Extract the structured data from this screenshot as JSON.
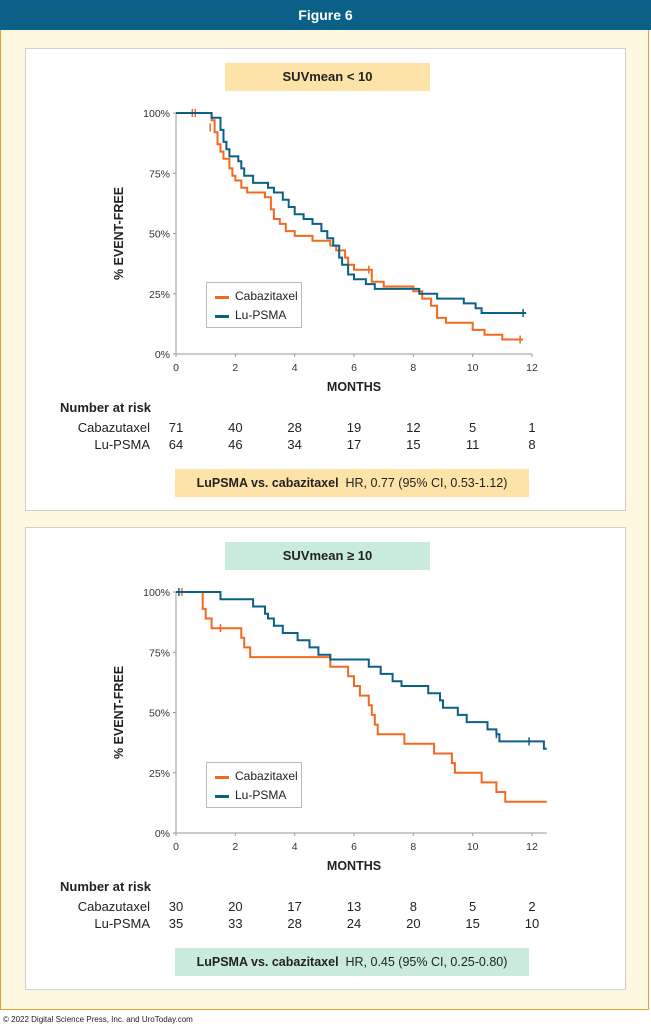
{
  "figure": {
    "title": "Figure 6"
  },
  "footer": {
    "text": "© 2022 Digital Science Press, Inc. and UroToday.com"
  },
  "colors": {
    "cabazitaxel": "#f26a21",
    "lu_psma": "#0b6087",
    "header": "#0b6087"
  },
  "chart_data": [
    {
      "type": "line",
      "title": "SUVmean < 10",
      "xlabel": "MONTHS",
      "ylabel": "% EVENT-FREE",
      "xlim": [
        0,
        12
      ],
      "ylim": [
        0,
        100
      ],
      "x_ticks": [
        "0",
        "2",
        "4",
        "6",
        "8",
        "10",
        "12"
      ],
      "y_ticks": [
        "0%",
        "25%",
        "50%",
        "75%",
        "100%"
      ],
      "legend": "inside-lower-left",
      "series": [
        {
          "name": "Cabazitaxel",
          "color": "#f26a21",
          "points": [
            [
              0,
              100
            ],
            [
              1.2,
              100
            ],
            [
              1.2,
              97
            ],
            [
              1.3,
              97
            ],
            [
              1.3,
              92
            ],
            [
              1.4,
              92
            ],
            [
              1.4,
              87
            ],
            [
              1.5,
              87
            ],
            [
              1.5,
              84
            ],
            [
              1.6,
              84
            ],
            [
              1.6,
              81
            ],
            [
              1.8,
              81
            ],
            [
              1.8,
              77
            ],
            [
              1.9,
              77
            ],
            [
              1.9,
              74
            ],
            [
              2.0,
              74
            ],
            [
              2.0,
              72
            ],
            [
              2.2,
              72
            ],
            [
              2.2,
              69
            ],
            [
              2.4,
              69
            ],
            [
              2.4,
              67
            ],
            [
              3.0,
              67
            ],
            [
              3.0,
              65
            ],
            [
              3.2,
              65
            ],
            [
              3.2,
              60
            ],
            [
              3.3,
              60
            ],
            [
              3.3,
              56
            ],
            [
              3.5,
              56
            ],
            [
              3.5,
              54
            ],
            [
              3.7,
              54
            ],
            [
              3.7,
              51
            ],
            [
              4.0,
              51
            ],
            [
              4.0,
              49
            ],
            [
              4.6,
              49
            ],
            [
              4.6,
              47
            ],
            [
              5.2,
              47
            ],
            [
              5.2,
              45
            ],
            [
              5.4,
              45
            ],
            [
              5.4,
              43
            ],
            [
              5.7,
              43
            ],
            [
              5.7,
              40
            ],
            [
              5.8,
              40
            ],
            [
              5.8,
              37
            ],
            [
              6.0,
              37
            ],
            [
              6.0,
              35
            ],
            [
              6.6,
              35
            ],
            [
              6.6,
              30
            ],
            [
              7.0,
              30
            ],
            [
              7.0,
              28
            ],
            [
              8.0,
              28
            ],
            [
              8.0,
              26
            ],
            [
              8.3,
              26
            ],
            [
              8.3,
              23
            ],
            [
              8.6,
              23
            ],
            [
              8.6,
              20
            ],
            [
              8.8,
              20
            ],
            [
              8.8,
              15
            ],
            [
              9.1,
              15
            ],
            [
              9.1,
              13
            ],
            [
              10.0,
              13
            ],
            [
              10.0,
              10
            ],
            [
              10.4,
              10
            ],
            [
              10.4,
              8
            ],
            [
              11.0,
              8
            ],
            [
              11.0,
              6
            ],
            [
              11.7,
              6
            ]
          ],
          "censored": [
            [
              0.55,
              100
            ],
            [
              0.65,
              100
            ],
            [
              1.15,
              94
            ],
            [
              6.5,
              35
            ],
            [
              11.6,
              6
            ]
          ]
        },
        {
          "name": "Lu-PSMA",
          "color": "#0b6087",
          "points": [
            [
              0,
              100
            ],
            [
              1.2,
              100
            ],
            [
              1.2,
              98
            ],
            [
              1.5,
              98
            ],
            [
              1.5,
              93
            ],
            [
              1.6,
              93
            ],
            [
              1.6,
              88
            ],
            [
              1.7,
              88
            ],
            [
              1.7,
              85
            ],
            [
              1.8,
              85
            ],
            [
              1.8,
              82
            ],
            [
              2.1,
              82
            ],
            [
              2.1,
              80
            ],
            [
              2.2,
              80
            ],
            [
              2.2,
              77
            ],
            [
              2.3,
              77
            ],
            [
              2.3,
              74
            ],
            [
              2.6,
              74
            ],
            [
              2.6,
              71
            ],
            [
              3.1,
              71
            ],
            [
              3.1,
              69
            ],
            [
              3.3,
              69
            ],
            [
              3.3,
              67
            ],
            [
              3.6,
              67
            ],
            [
              3.6,
              64
            ],
            [
              3.8,
              64
            ],
            [
              3.8,
              61
            ],
            [
              4.0,
              61
            ],
            [
              4.0,
              58
            ],
            [
              4.3,
              58
            ],
            [
              4.3,
              56
            ],
            [
              4.6,
              56
            ],
            [
              4.6,
              54
            ],
            [
              4.9,
              54
            ],
            [
              4.9,
              51
            ],
            [
              5.1,
              51
            ],
            [
              5.1,
              48
            ],
            [
              5.3,
              48
            ],
            [
              5.3,
              45
            ],
            [
              5.5,
              45
            ],
            [
              5.5,
              40
            ],
            [
              5.6,
              40
            ],
            [
              5.6,
              37
            ],
            [
              5.8,
              37
            ],
            [
              5.8,
              33
            ],
            [
              6.0,
              33
            ],
            [
              6.0,
              31
            ],
            [
              6.4,
              31
            ],
            [
              6.4,
              29
            ],
            [
              6.7,
              29
            ],
            [
              6.7,
              27
            ],
            [
              8.2,
              27
            ],
            [
              8.2,
              25
            ],
            [
              8.8,
              25
            ],
            [
              8.8,
              23
            ],
            [
              9.7,
              23
            ],
            [
              9.7,
              21
            ],
            [
              10.1,
              21
            ],
            [
              10.1,
              19
            ],
            [
              10.3,
              19
            ],
            [
              10.3,
              17
            ],
            [
              11.8,
              17
            ]
          ],
          "censored": [
            [
              11.7,
              17
            ]
          ]
        }
      ]
    },
    {
      "type": "line",
      "title": "SUVmean ≥ 10",
      "xlabel": "MONTHS",
      "ylabel": "% EVENT-FREE",
      "xlim": [
        0,
        12.5
      ],
      "ylim": [
        0,
        100
      ],
      "x_ticks": [
        "0",
        "2",
        "4",
        "6",
        "8",
        "10",
        "12"
      ],
      "y_ticks": [
        "0%",
        "25%",
        "50%",
        "75%",
        "100%"
      ],
      "legend": "inside-lower-left",
      "series": [
        {
          "name": "Cabazitaxel",
          "color": "#f26a21",
          "points": [
            [
              0,
              100
            ],
            [
              0.9,
              100
            ],
            [
              0.9,
              93
            ],
            [
              1.0,
              93
            ],
            [
              1.0,
              89
            ],
            [
              1.2,
              89
            ],
            [
              1.2,
              85
            ],
            [
              2.2,
              85
            ],
            [
              2.2,
              81
            ],
            [
              2.3,
              81
            ],
            [
              2.3,
              77
            ],
            [
              2.5,
              77
            ],
            [
              2.5,
              73
            ],
            [
              5.2,
              73
            ],
            [
              5.2,
              69
            ],
            [
              5.8,
              69
            ],
            [
              5.8,
              65
            ],
            [
              6.0,
              65
            ],
            [
              6.0,
              61
            ],
            [
              6.2,
              61
            ],
            [
              6.2,
              57
            ],
            [
              6.5,
              57
            ],
            [
              6.5,
              53
            ],
            [
              6.6,
              53
            ],
            [
              6.6,
              49
            ],
            [
              6.7,
              49
            ],
            [
              6.7,
              45
            ],
            [
              6.8,
              45
            ],
            [
              6.8,
              41
            ],
            [
              7.7,
              41
            ],
            [
              7.7,
              37
            ],
            [
              8.7,
              37
            ],
            [
              8.7,
              33
            ],
            [
              9.3,
              33
            ],
            [
              9.3,
              29
            ],
            [
              9.4,
              29
            ],
            [
              9.4,
              25
            ],
            [
              10.3,
              25
            ],
            [
              10.3,
              21
            ],
            [
              10.8,
              21
            ],
            [
              10.8,
              17
            ],
            [
              11.1,
              17
            ],
            [
              11.1,
              13
            ],
            [
              12.5,
              13
            ]
          ],
          "censored": [
            [
              0.2,
              100
            ],
            [
              1.5,
              85
            ]
          ]
        },
        {
          "name": "Lu-PSMA",
          "color": "#0b6087",
          "points": [
            [
              0,
              100
            ],
            [
              1.5,
              100
            ],
            [
              1.5,
              97
            ],
            [
              2.6,
              97
            ],
            [
              2.6,
              94
            ],
            [
              3.0,
              94
            ],
            [
              3.0,
              91
            ],
            [
              3.1,
              91
            ],
            [
              3.1,
              89
            ],
            [
              3.3,
              89
            ],
            [
              3.3,
              86
            ],
            [
              3.6,
              86
            ],
            [
              3.6,
              83
            ],
            [
              4.1,
              83
            ],
            [
              4.1,
              80
            ],
            [
              4.5,
              80
            ],
            [
              4.5,
              77
            ],
            [
              4.8,
              77
            ],
            [
              4.8,
              74
            ],
            [
              5.2,
              74
            ],
            [
              5.2,
              72
            ],
            [
              6.5,
              72
            ],
            [
              6.5,
              69
            ],
            [
              6.9,
              69
            ],
            [
              6.9,
              66
            ],
            [
              7.3,
              66
            ],
            [
              7.3,
              63
            ],
            [
              7.6,
              63
            ],
            [
              7.6,
              61
            ],
            [
              8.5,
              61
            ],
            [
              8.5,
              58
            ],
            [
              8.9,
              58
            ],
            [
              8.9,
              55
            ],
            [
              9.0,
              55
            ],
            [
              9.0,
              52
            ],
            [
              9.5,
              52
            ],
            [
              9.5,
              49
            ],
            [
              9.8,
              49
            ],
            [
              9.8,
              46
            ],
            [
              10.5,
              46
            ],
            [
              10.5,
              43
            ],
            [
              10.8,
              43
            ],
            [
              10.8,
              41
            ],
            [
              10.9,
              41
            ],
            [
              10.9,
              38
            ],
            [
              12.4,
              38
            ],
            [
              12.4,
              35
            ],
            [
              12.5,
              35
            ]
          ],
          "censored": [
            [
              0.1,
              100
            ],
            [
              10.8,
              41
            ],
            [
              11.9,
              38
            ]
          ]
        }
      ]
    }
  ],
  "panels": [
    {
      "risk": {
        "heading": "Number at risk",
        "rows": [
          {
            "label": "Cabazutaxel",
            "values": [
              "71",
              "40",
              "28",
              "19",
              "12",
              "5",
              "1"
            ]
          },
          {
            "label": "Lu-PSMA",
            "values": [
              "64",
              "46",
              "34",
              "17",
              "15",
              "11",
              "8"
            ]
          }
        ]
      },
      "hr": {
        "bold": "LuPSMA vs. cabazitaxel",
        "text": "HR, 0.77 (95% CI, 0.53-1.12)"
      }
    },
    {
      "risk": {
        "heading": "Number at risk",
        "rows": [
          {
            "label": "Cabazutaxel",
            "values": [
              "30",
              "20",
              "17",
              "13",
              "8",
              "5",
              "2"
            ]
          },
          {
            "label": "Lu-PSMA",
            "values": [
              "35",
              "33",
              "28",
              "24",
              "20",
              "15",
              "10"
            ]
          }
        ]
      },
      "hr": {
        "bold": "LuPSMA vs. cabazitaxel",
        "text": "HR, 0.45 (95% CI, 0.25-0.80)"
      }
    }
  ]
}
